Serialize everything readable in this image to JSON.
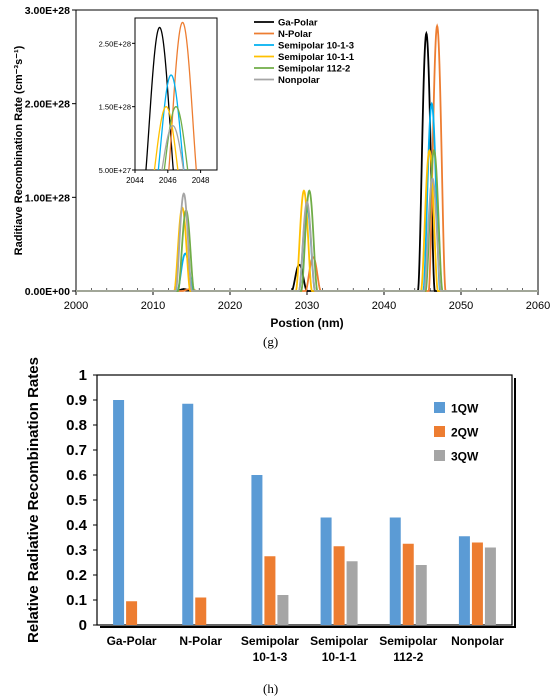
{
  "panels": {
    "g_label": "(g)",
    "h_label": "(h)"
  },
  "colors": {
    "ga_polar": "#000000",
    "n_polar": "#ED7D31",
    "semi_1013": "#00B0F0",
    "semi_1011": "#FFC000",
    "semi_1122": "#70AD47",
    "nonpolar": "#A5A5A5",
    "qw1": "#5B9BD5",
    "qw2": "#ED7D31",
    "qw3": "#A5A5A5"
  },
  "chart_data": [
    {
      "type": "line",
      "xlabel": "Postion (nm)",
      "ylabel": "Raditiave Recombination Rate (cm⁻³s⁻¹)",
      "xlim": [
        2000,
        2060
      ],
      "ylim": [
        0,
        3e+28
      ],
      "x_ticks": [
        2000,
        2010,
        2020,
        2030,
        2040,
        2050,
        2060
      ],
      "y_ticks": [
        0,
        1e+28,
        2e+28,
        3e+28
      ],
      "y_tick_labels": [
        "0.00E+00",
        "1.00E+28",
        "2.00E+28",
        "3.00E+28"
      ],
      "legend_position": "top-right",
      "series": [
        {
          "name": "Ga-Polar",
          "color_key": "ga_polar",
          "peaks": [
            [
              2014.0,
              2e+26,
              1.0
            ],
            [
              2029.0,
              2.8e+27,
              1.0
            ],
            [
              2045.5,
              2.75e+28,
              1.1
            ]
          ]
        },
        {
          "name": "N-Polar",
          "color_key": "n_polar",
          "peaks": [
            [
              2014.8,
              2e+26,
              1.0
            ],
            [
              2030.8,
              3.6e+27,
              1.0
            ],
            [
              2046.9,
              2.83e+28,
              1.1
            ]
          ]
        },
        {
          "name": "Semipolar 10-1-3",
          "color_key": "semi_1013",
          "peaks": [
            [
              2014.2,
              4e+27,
              1.05
            ],
            [
              2030.0,
              9e+27,
              1.05
            ],
            [
              2046.2,
              2e+28,
              1.1
            ]
          ]
        },
        {
          "name": "Semipolar 10-1-1",
          "color_key": "semi_1011",
          "peaks": [
            [
              2013.8,
              8.9e+27,
              1.05
            ],
            [
              2029.6,
              1.07e+28,
              1.05
            ],
            [
              2045.9,
              1.5e+28,
              1.1
            ]
          ]
        },
        {
          "name": "Semipolar 112-2",
          "color_key": "semi_1122",
          "peaks": [
            [
              2014.3,
              8.6e+27,
              1.05
            ],
            [
              2030.3,
              1.07e+28,
              1.05
            ],
            [
              2046.5,
              1.5e+28,
              1.1
            ]
          ]
        },
        {
          "name": "Nonpolar",
          "color_key": "nonpolar",
          "peaks": [
            [
              2014.0,
              1.04e+28,
              1.05
            ],
            [
              2030.0,
              9.5e+27,
              1.05
            ],
            [
              2046.3,
              1.2e+28,
              1.1
            ]
          ]
        }
      ],
      "inset": {
        "xlim": [
          2044,
          2049
        ],
        "ylim": [
          5e+27,
          2.9e+28
        ],
        "x_ticks": [
          2044,
          2046,
          2048
        ],
        "y_ticks": [
          5e+27,
          1.5e+28,
          2.5e+28
        ],
        "y_tick_labels": [
          "5.00E+27",
          "1.50E+28",
          "2.50E+28"
        ]
      }
    },
    {
      "type": "bar",
      "ylabel": "Relative Radiative Recombination Rates",
      "categories": [
        "Ga-Polar",
        "N-Polar",
        "Semipolar 10-1-3",
        "Semipolar 10-1-1",
        "Semipolar 112-2",
        "Nonpolar"
      ],
      "category_lines": [
        [
          "Ga-Polar"
        ],
        [
          "N-Polar"
        ],
        [
          "Semipolar",
          "10-1-3"
        ],
        [
          "Semipolar",
          "10-1-1"
        ],
        [
          "Semipolar",
          "112-2"
        ],
        [
          "Nonpolar"
        ]
      ],
      "ylim": [
        0,
        1
      ],
      "y_ticks": [
        0,
        0.1,
        0.2,
        0.3,
        0.4,
        0.5,
        0.6,
        0.7,
        0.8,
        0.9,
        1
      ],
      "y_tick_labels": [
        "0",
        "0.1",
        "0.2",
        "0.3",
        "0.4",
        "0.5",
        "0.6",
        "0.7",
        "0.8",
        "0.9",
        "1"
      ],
      "legend_position": "top-right",
      "series": [
        {
          "name": "1QW",
          "color_key": "qw1",
          "values": [
            0.9,
            0.885,
            0.6,
            0.43,
            0.43,
            0.355
          ]
        },
        {
          "name": "2QW",
          "color_key": "qw2",
          "values": [
            0.095,
            0.11,
            0.275,
            0.315,
            0.325,
            0.33
          ]
        },
        {
          "name": "3QW",
          "color_key": "qw3",
          "values": [
            0.0,
            0.0,
            0.12,
            0.255,
            0.24,
            0.31
          ]
        }
      ]
    }
  ]
}
